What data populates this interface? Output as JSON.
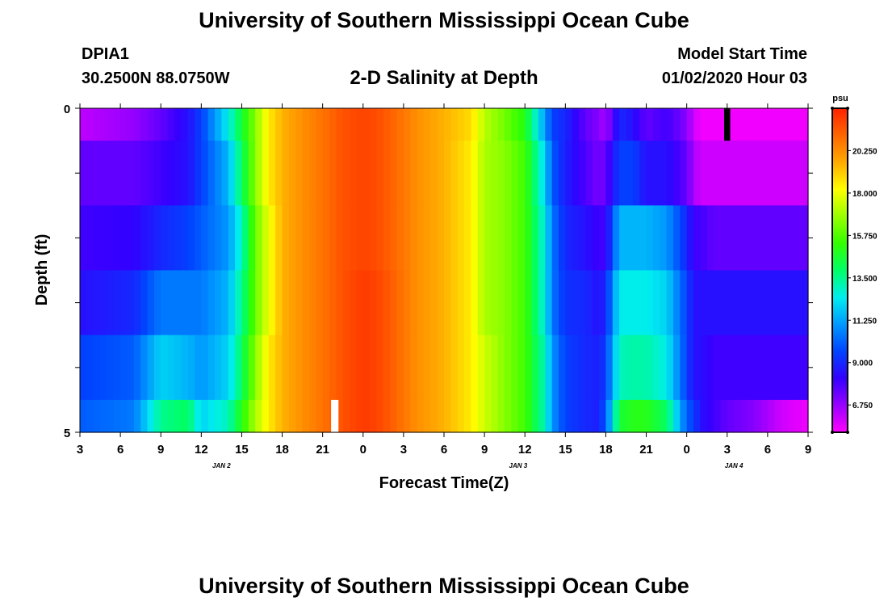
{
  "header": {
    "title": "University of Southern Mississippi Ocean Cube",
    "station_id": "DPIA1",
    "coords": "30.2500N 88.0750W",
    "plot_title": "2-D Salinity at Depth",
    "model_start_label": "Model Start Time",
    "model_start_time": "01/02/2020 Hour 03"
  },
  "footer": {
    "title": "University of Southern Mississippi Ocean Cube"
  },
  "chart_data": {
    "type": "heatmap",
    "title": "2-D Salinity at Depth",
    "xlabel": "Forecast Time(Z)",
    "ylabel": "Depth (ft)",
    "units": "psu",
    "x_tick_labels": [
      "3",
      "6",
      "9",
      "12",
      "15",
      "18",
      "21",
      "0",
      "3",
      "6",
      "9",
      "12",
      "15",
      "18",
      "21",
      "0",
      "3",
      "6",
      "9"
    ],
    "date_labels": [
      {
        "label": "JAN 2",
        "x_hours": 10.5
      },
      {
        "label": "JAN 3",
        "x_hours": 32.5
      },
      {
        "label": "JAN 4",
        "x_hours": 48.5
      }
    ],
    "y_tick_labels": [
      "0",
      "5"
    ],
    "x_range_hours": [
      0,
      54
    ],
    "y_range_ft": [
      0,
      5
    ],
    "colorbar": {
      "label": "psu",
      "tick_labels": [
        "20.250",
        "18.000",
        "15.750",
        "13.500",
        "11.250",
        "9.000",
        "6.750"
      ],
      "tick_values": [
        20.25,
        18.0,
        15.75,
        13.5,
        11.25,
        9.0,
        6.75
      ],
      "range": [
        5.3,
        22.5
      ],
      "colors": [
        "#ff00ff",
        "#9900ff",
        "#3300ff",
        "#0044ff",
        "#0099ff",
        "#00eeee",
        "#00ff66",
        "#33ff00",
        "#99ff00",
        "#ffff00",
        "#ffaa00",
        "#ff6600",
        "#ff2200"
      ]
    },
    "depth_rows": [
      {
        "label": "0.0-0.5",
        "y0": 0.0,
        "y1": 0.5
      },
      {
        "label": "0.5-1.5",
        "y0": 0.5,
        "y1": 1.5
      },
      {
        "label": "1.5-2.5",
        "y0": 1.5,
        "y1": 2.5
      },
      {
        "label": "2.5-3.5",
        "y0": 2.5,
        "y1": 3.5
      },
      {
        "label": "3.5-4.5",
        "y0": 3.5,
        "y1": 4.5
      },
      {
        "label": "4.5-5.0",
        "y0": 4.5,
        "y1": 5.0
      }
    ],
    "time_profiles": [
      {
        "hours": [
          0,
          4,
          6,
          8,
          9,
          11,
          12,
          13,
          14,
          15,
          16.5,
          18,
          19.5,
          21,
          22,
          23,
          25,
          27,
          29,
          30,
          31.5,
          33,
          34.5,
          35,
          36,
          37.5,
          38.5,
          39,
          40,
          41,
          42,
          43.5,
          45,
          45.5,
          46,
          47,
          48,
          50,
          52,
          54
        ],
        "values": [
          6.2,
          6.8,
          7.5,
          8.5,
          9.5,
          12.5,
          14.5,
          16.5,
          18.5,
          19.5,
          20.2,
          20.8,
          21.5,
          21.8,
          21.6,
          21.2,
          20.2,
          19.5,
          18.8,
          17.2,
          16.2,
          15.0,
          11.0,
          9.5,
          9.0,
          7.5,
          7.0,
          6.5,
          9.0,
          8.5,
          7.5,
          8.0,
          7.0,
          6.0,
          5.5,
          5.5,
          5.5,
          5.5,
          5.5,
          5.5
        ]
      },
      {
        "hours": [
          0,
          4,
          6,
          8,
          9,
          11,
          12,
          13,
          14,
          15,
          16.5,
          18,
          19.5,
          21,
          22,
          23,
          25,
          27,
          29,
          30,
          31.5,
          33,
          34.5,
          35,
          36,
          37.5,
          38.5,
          39,
          40,
          41,
          42,
          43.5,
          45,
          45.5,
          46,
          47,
          48,
          50,
          52,
          54
        ],
        "values": [
          7.5,
          7.5,
          8.0,
          8.5,
          9.5,
          11.5,
          14.0,
          16.5,
          18.5,
          19.5,
          20.2,
          20.8,
          21.5,
          21.8,
          21.6,
          21.2,
          20.2,
          19.5,
          18.5,
          17.0,
          16.5,
          15.5,
          12.0,
          10.0,
          8.8,
          7.8,
          7.2,
          7.5,
          9.5,
          9.5,
          8.5,
          8.5,
          7.5,
          6.5,
          6.0,
          6.0,
          6.0,
          6.0,
          6.0,
          6.0
        ]
      },
      {
        "hours": [
          0,
          4,
          6,
          8,
          9,
          11,
          12,
          13,
          14,
          15,
          16.5,
          18,
          19.5,
          21,
          22,
          23,
          25,
          27,
          29,
          30,
          31.5,
          33,
          34.5,
          35,
          36,
          37.5,
          38.5,
          39,
          40,
          41,
          42,
          43.5,
          45,
          45.5,
          46,
          47,
          48,
          50,
          52,
          54
        ],
        "values": [
          8.0,
          8.2,
          9.0,
          9.5,
          10.0,
          11.0,
          13.0,
          16.0,
          18.0,
          19.5,
          20.2,
          20.8,
          21.5,
          21.8,
          21.6,
          21.2,
          20.2,
          19.5,
          18.5,
          17.0,
          16.5,
          15.5,
          12.5,
          10.5,
          9.0,
          8.5,
          8.0,
          8.0,
          11.5,
          11.5,
          11.5,
          11.0,
          9.0,
          8.0,
          8.0,
          7.5,
          7.5,
          7.5,
          7.5,
          7.5
        ]
      },
      {
        "hours": [
          0,
          4,
          6,
          8,
          9,
          11,
          12,
          13,
          14,
          15,
          16.5,
          18,
          19.5,
          21,
          22,
          23,
          25,
          27,
          29,
          30,
          31.5,
          33,
          34.5,
          35,
          36,
          37.5,
          38.5,
          39,
          40,
          41,
          42,
          43.5,
          45,
          45.5,
          46,
          47,
          48,
          50,
          52,
          54
        ],
        "values": [
          8.5,
          9.0,
          10.5,
          10.5,
          10.5,
          11.5,
          13.5,
          16.0,
          18.0,
          19.5,
          20.2,
          20.8,
          21.5,
          22.0,
          21.8,
          21.3,
          20.2,
          19.5,
          18.5,
          17.0,
          16.5,
          15.5,
          12.5,
          10.5,
          9.2,
          9.0,
          8.5,
          9.0,
          12.5,
          12.5,
          12.5,
          12.0,
          9.5,
          8.5,
          8.5,
          8.5,
          8.5,
          8.5,
          8.5,
          8.5
        ]
      },
      {
        "hours": [
          0,
          4,
          6,
          8,
          9,
          11,
          12,
          13,
          14,
          15,
          16.5,
          18,
          19.5,
          21,
          22,
          23,
          25,
          27,
          29,
          30,
          31.5,
          33,
          34.5,
          35,
          36,
          37.5,
          38.5,
          39,
          40,
          41,
          42,
          43.5,
          45,
          45.5,
          46,
          47,
          48,
          50,
          52,
          54
        ],
        "values": [
          9.5,
          10.0,
          12.0,
          11.5,
          11.0,
          12.0,
          14.0,
          16.5,
          18.5,
          19.5,
          20.2,
          20.8,
          21.5,
          22.0,
          21.8,
          21.3,
          20.2,
          19.5,
          18.5,
          17.5,
          16.5,
          15.5,
          13.0,
          11.0,
          9.5,
          9.0,
          8.8,
          9.5,
          13.0,
          13.2,
          13.2,
          12.5,
          9.5,
          8.5,
          8.5,
          8.0,
          8.0,
          8.0,
          8.0,
          8.0
        ]
      },
      {
        "hours": [
          0,
          4,
          6,
          8,
          9,
          11,
          12,
          13,
          14,
          15,
          16.5,
          18,
          19.5,
          21,
          22,
          23,
          25,
          27,
          29,
          30,
          31.5,
          33,
          34.5,
          35,
          36,
          37.5,
          38.5,
          39,
          40,
          41,
          42,
          43.5,
          45,
          45.5,
          46,
          47,
          48,
          50,
          52,
          54
        ],
        "values": [
          10.0,
          10.5,
          13.5,
          14.0,
          12.0,
          13.0,
          15.0,
          17.0,
          18.5,
          19.5,
          20.2,
          20.8,
          21.5,
          22.0,
          21.8,
          21.3,
          20.2,
          19.5,
          18.5,
          17.5,
          16.5,
          15.5,
          13.0,
          11.0,
          9.5,
          9.0,
          8.8,
          10.0,
          14.5,
          15.0,
          15.0,
          14.0,
          10.0,
          9.5,
          8.5,
          8.0,
          7.5,
          7.0,
          6.0,
          5.5
        ]
      }
    ],
    "markers": [
      {
        "name": "black-gap-marker",
        "hour": 48.0,
        "width_hours": 0.45,
        "y0": 0.0,
        "y1": 0.5,
        "color": "#000000"
      },
      {
        "name": "white-gap-marker",
        "hour": 18.9,
        "width_hours": 0.55,
        "y0": 4.5,
        "y1": 5.0,
        "color": "#ffffff"
      }
    ]
  }
}
